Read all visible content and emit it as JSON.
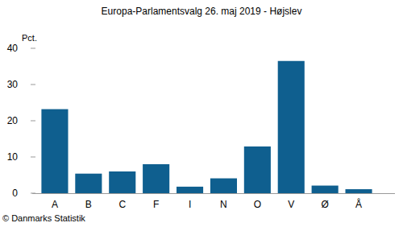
{
  "chart_data": {
    "type": "bar",
    "title": "Europa-Parlamentsvalg 26. maj 2019 - Højslev",
    "y_label": "Pct.",
    "footer": "© Danmarks Statistik",
    "categories": [
      "A",
      "B",
      "C",
      "F",
      "I",
      "N",
      "O",
      "V",
      "Ø",
      "Å"
    ],
    "values": [
      23.2,
      5.4,
      6.0,
      8.0,
      1.8,
      4.1,
      12.9,
      36.5,
      2.1,
      1.1
    ],
    "color": "#0f5f8f",
    "ylim": [
      0,
      40
    ],
    "yticks": [
      0,
      10,
      20,
      30,
      40
    ],
    "grid": false
  }
}
